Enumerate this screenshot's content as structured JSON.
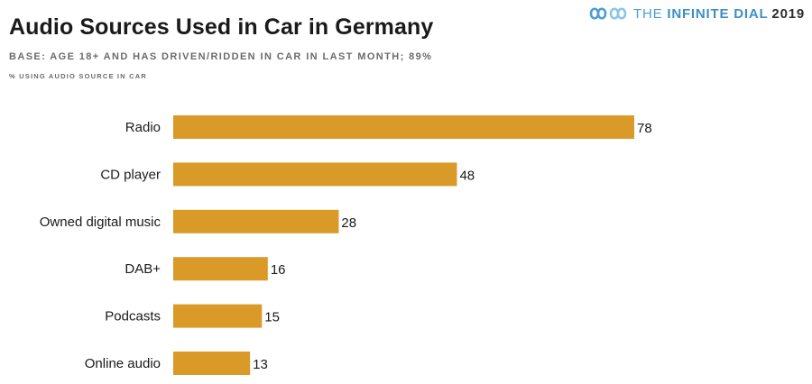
{
  "header": {
    "title": "Audio Sources Used in Car in Germany",
    "subtitle": "BASE: AGE 18+ AND HAS DRIVEN/RIDDEN IN CAR IN LAST MONTH; 89%",
    "note": "% USING AUDIO SOURCE IN CAR"
  },
  "brand": {
    "part1": "THE ",
    "part2": "INFINITE DIAL",
    "part3": "2019",
    "logo_icon": "infinity-logo-icon",
    "accent_color": "#4a9fd2"
  },
  "chart_data": {
    "type": "bar",
    "orientation": "horizontal",
    "categories": [
      "Radio",
      "CD player",
      "Owned digital music",
      "DAB+",
      "Podcasts",
      "Online audio"
    ],
    "values": [
      78,
      48,
      28,
      16,
      15,
      13
    ],
    "title": "Audio Sources Used in Car in Germany",
    "xlabel": "",
    "ylabel": "",
    "xlim": [
      0,
      78
    ],
    "grid": false,
    "legend": "none",
    "bar_color": "#d99a27",
    "data_labels": true
  }
}
